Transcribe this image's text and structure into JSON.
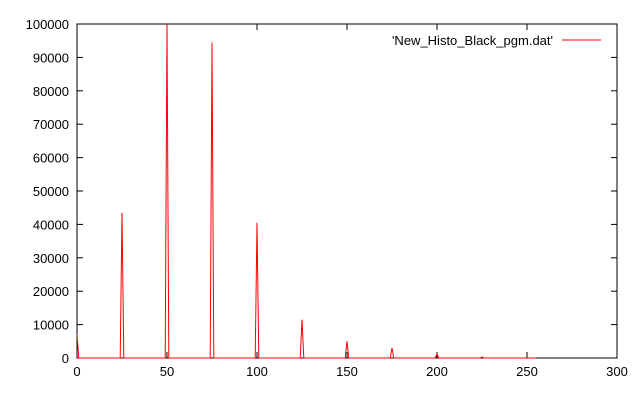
{
  "chart_data": {
    "type": "line",
    "title": "",
    "xlabel": "",
    "ylabel": "",
    "xlim": [
      0,
      300
    ],
    "ylim": [
      0,
      100000
    ],
    "grid": false,
    "legend_position": "top-right",
    "x_ticks": [
      0,
      50,
      100,
      150,
      200,
      250,
      300
    ],
    "x_tick_labels": [
      "0",
      "50",
      "100",
      "150",
      "200",
      "250",
      "300"
    ],
    "y_ticks": [
      0,
      10000,
      20000,
      30000,
      40000,
      50000,
      60000,
      70000,
      80000,
      90000,
      100000
    ],
    "y_tick_labels": [
      "0",
      "10000",
      "20000",
      "30000",
      "40000",
      "50000",
      "60000",
      "70000",
      "80000",
      "90000",
      "100000"
    ],
    "series": [
      {
        "name": "'New_Histo_Black_pgm.dat'",
        "color": "#ff0000",
        "points": [
          [
            0,
            7000
          ],
          [
            1,
            0
          ],
          [
            24,
            0
          ],
          [
            25,
            43500
          ],
          [
            26,
            0
          ],
          [
            49,
            0
          ],
          [
            50,
            100000
          ],
          [
            51,
            0
          ],
          [
            74,
            0
          ],
          [
            75,
            94500
          ],
          [
            76,
            0
          ],
          [
            99,
            0
          ],
          [
            100,
            40500
          ],
          [
            101,
            0
          ],
          [
            124,
            0
          ],
          [
            125,
            11500
          ],
          [
            126,
            0
          ],
          [
            149,
            0
          ],
          [
            150,
            5000
          ],
          [
            151,
            0
          ],
          [
            174,
            0
          ],
          [
            175,
            3000
          ],
          [
            176,
            0
          ],
          [
            199,
            0
          ],
          [
            200,
            1200
          ],
          [
            201,
            0
          ],
          [
            224,
            0
          ],
          [
            225,
            300
          ],
          [
            226,
            0
          ],
          [
            249,
            0
          ],
          [
            250,
            80
          ],
          [
            251,
            0
          ],
          [
            255,
            0
          ]
        ]
      }
    ]
  }
}
